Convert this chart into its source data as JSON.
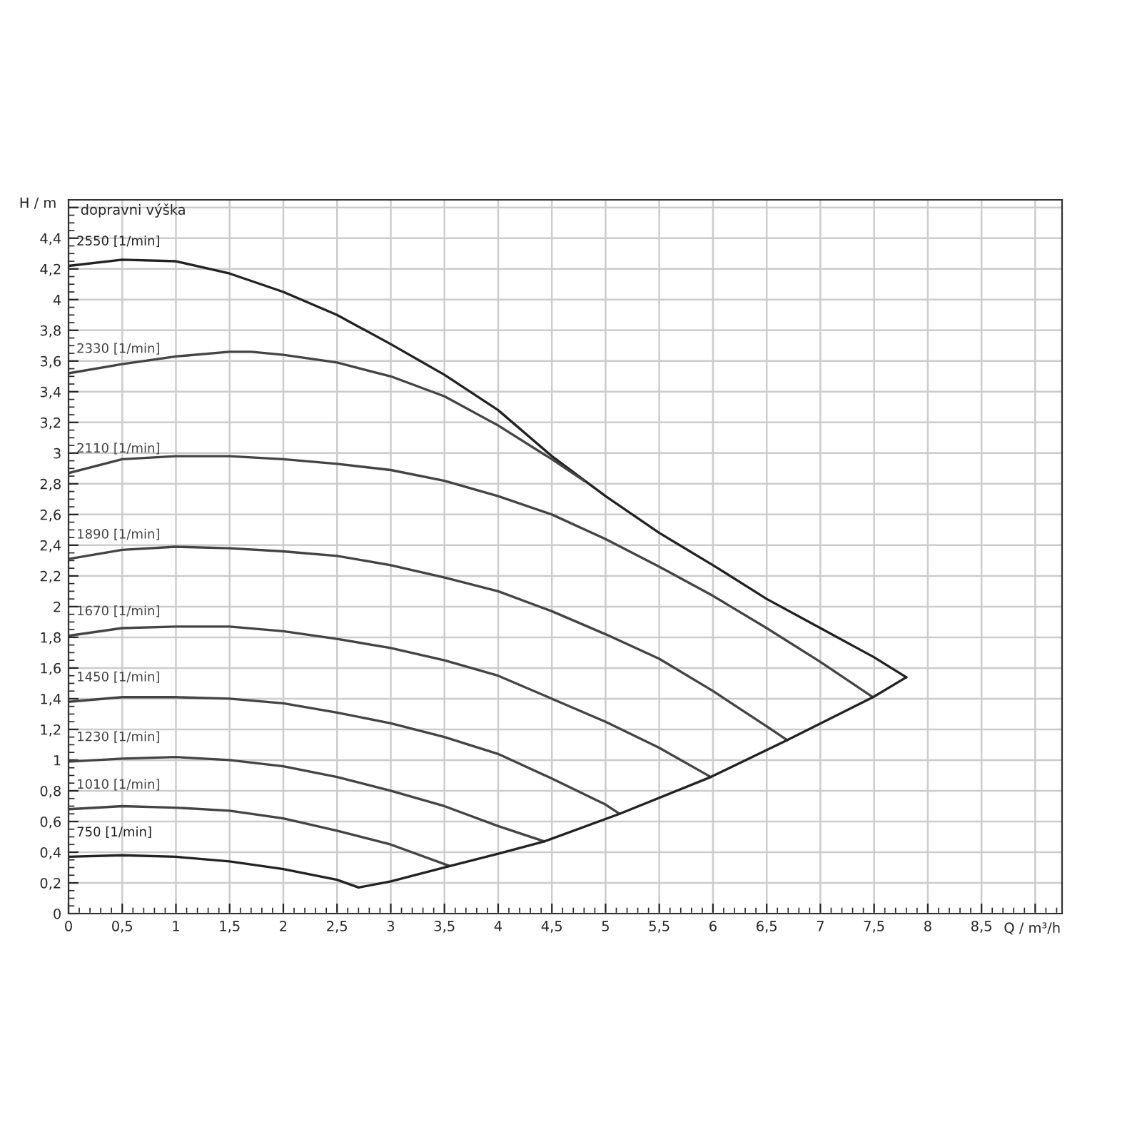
{
  "chart_data": {
    "type": "line",
    "xlabel": "Q / m³/h",
    "ylabel": "H / m",
    "annotations": [
      "dopravni výška"
    ],
    "xlim": [
      0,
      9.25
    ],
    "ylim": [
      0,
      4.65
    ],
    "xticks": [
      0,
      {
        "value": 0.5,
        "label": "0,5"
      },
      1,
      {
        "value": 1.5,
        "label": "1,5"
      },
      2,
      {
        "value": 2.5,
        "label": "2,5"
      },
      3,
      {
        "value": 3.5,
        "label": "3,5"
      },
      4,
      {
        "value": 4.5,
        "label": "4,5"
      },
      5,
      {
        "value": 5.5,
        "label": "5,5"
      },
      6,
      {
        "value": 6.5,
        "label": "6,5"
      },
      7,
      {
        "value": 7.5,
        "label": "7,5"
      },
      8,
      {
        "value": 8.5,
        "label": "8,5"
      },
      {
        "value": 9,
        "label": null
      }
    ],
    "yticks": [
      0,
      {
        "value": 0.2,
        "label": "0,2"
      },
      {
        "value": 0.4,
        "label": "0,4"
      },
      {
        "value": 0.6,
        "label": "0,6"
      },
      {
        "value": 0.8,
        "label": "0,8"
      },
      1,
      {
        "value": 1.2,
        "label": "1,2"
      },
      {
        "value": 1.4,
        "label": "1,4"
      },
      {
        "value": 1.6,
        "label": "1,6"
      },
      {
        "value": 1.8,
        "label": "1,8"
      },
      2,
      {
        "value": 2.2,
        "label": "2,2"
      },
      {
        "value": 2.4,
        "label": "2,4"
      },
      {
        "value": 2.6,
        "label": "2,6"
      },
      {
        "value": 2.8,
        "label": "2,8"
      },
      3,
      {
        "value": 3.2,
        "label": "3,2"
      },
      {
        "value": 3.4,
        "label": "3,4"
      },
      {
        "value": 3.6,
        "label": "3,6"
      },
      {
        "value": 3.8,
        "label": "3,8"
      },
      4,
      {
        "value": 4.2,
        "label": "4,2"
      },
      {
        "value": 4.4,
        "label": "4,4"
      },
      {
        "value": 4.6,
        "label": null
      }
    ],
    "grid": true,
    "legend": false,
    "marker": "none",
    "line_style": "solid",
    "series": [
      {
        "name": "2550 [1/min]",
        "color": "#222222",
        "x": [
          0,
          0.5,
          1,
          1.5,
          2,
          2.5,
          3,
          3.5,
          4,
          4.5,
          5,
          5.5,
          6,
          6.5,
          7,
          7.5,
          7.8
        ],
        "values": [
          4.22,
          4.26,
          4.25,
          4.17,
          4.05,
          3.9,
          3.71,
          3.51,
          3.28,
          2.98,
          2.72,
          2.48,
          2.27,
          2.05,
          1.86,
          1.67,
          1.54
        ]
      },
      {
        "name": "2330 [1/min]",
        "color": "#444444",
        "x": [
          0,
          0.5,
          1,
          1.5,
          1.7,
          2,
          2.5,
          3,
          3.5,
          4,
          4.5,
          4.8
        ],
        "values": [
          3.52,
          3.58,
          3.63,
          3.66,
          3.66,
          3.64,
          3.59,
          3.5,
          3.37,
          3.18,
          2.96,
          2.82
        ]
      },
      {
        "name": "2110 [1/min]",
        "color": "#444444",
        "x": [
          0,
          0.5,
          1,
          1.5,
          2,
          2.5,
          3,
          3.5,
          4,
          4.5,
          5,
          5.5,
          6,
          6.5,
          7,
          7.49
        ],
        "values": [
          2.87,
          2.96,
          2.98,
          2.98,
          2.96,
          2.93,
          2.89,
          2.82,
          2.72,
          2.6,
          2.44,
          2.26,
          2.07,
          1.86,
          1.64,
          1.41
        ]
      },
      {
        "name": "1890 [1/min]",
        "color": "#444444",
        "x": [
          0,
          0.5,
          1,
          1.5,
          2,
          2.5,
          3,
          3.5,
          4,
          4.5,
          5,
          5.5,
          6,
          6.5,
          6.69
        ],
        "values": [
          2.31,
          2.37,
          2.39,
          2.38,
          2.36,
          2.33,
          2.27,
          2.19,
          2.1,
          1.97,
          1.82,
          1.66,
          1.45,
          1.22,
          1.13
        ]
      },
      {
        "name": "1670 [1/min]",
        "color": "#444444",
        "x": [
          0,
          0.5,
          1,
          1.5,
          2,
          2.5,
          3,
          3.5,
          4,
          4.5,
          5,
          5.5,
          5.98
        ],
        "values": [
          1.81,
          1.86,
          1.87,
          1.87,
          1.84,
          1.79,
          1.73,
          1.65,
          1.55,
          1.4,
          1.25,
          1.08,
          0.89
        ]
      },
      {
        "name": "1450 [1/min]",
        "color": "#444444",
        "x": [
          0,
          0.5,
          1,
          1.5,
          2,
          2.5,
          3,
          3.5,
          4,
          4.5,
          5,
          5.13
        ],
        "values": [
          1.38,
          1.41,
          1.41,
          1.4,
          1.37,
          1.31,
          1.24,
          1.15,
          1.04,
          0.88,
          0.71,
          0.65
        ]
      },
      {
        "name": "1230 [1/min]",
        "color": "#444444",
        "x": [
          0,
          0.5,
          1,
          1.5,
          2,
          2.5,
          3,
          3.5,
          4,
          4.43
        ],
        "values": [
          0.99,
          1.01,
          1.02,
          1.0,
          0.96,
          0.89,
          0.8,
          0.7,
          0.57,
          0.47
        ]
      },
      {
        "name": "1010 [1/min]",
        "color": "#444444",
        "x": [
          0,
          0.5,
          1,
          1.5,
          2,
          2.5,
          3,
          3.55
        ],
        "values": [
          0.68,
          0.7,
          0.69,
          0.67,
          0.62,
          0.54,
          0.45,
          0.31
        ]
      },
      {
        "name": "750 [1/min]",
        "color": "#222222",
        "x": [
          0,
          0.5,
          1,
          1.5,
          2,
          2.5,
          2.7
        ],
        "values": [
          0.37,
          0.38,
          0.37,
          0.34,
          0.29,
          0.22,
          0.17
        ]
      },
      {
        "color": "#222222",
        "x": [
          2.7,
          3,
          3.55,
          4,
          4.43,
          5.13,
          5.98,
          6.69,
          7.49,
          7.8
        ],
        "values": [
          0.17,
          0.21,
          0.31,
          0.39,
          0.47,
          0.65,
          0.89,
          1.13,
          1.41,
          1.54
        ]
      }
    ]
  }
}
